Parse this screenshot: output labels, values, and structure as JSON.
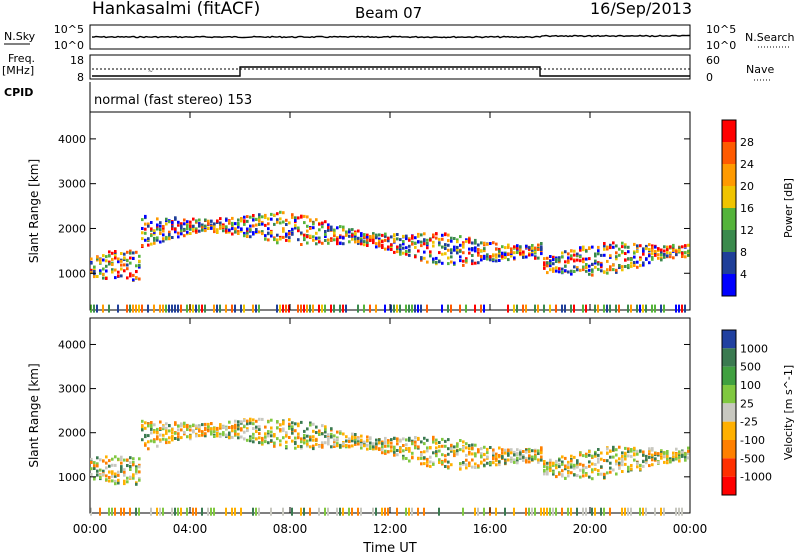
{
  "header": {
    "station": "Hankasalmi (fitACF)",
    "beam": "Beam 07",
    "date": "16/Sep/2013"
  },
  "top_panels": {
    "nsky_label": "N.Sky",
    "nsky_ticks": [
      "10^5",
      "10^0"
    ],
    "nsearch_label": "N.Search",
    "nsearch_ticks": [
      "10^5",
      "10^0"
    ],
    "freq_label_1": "Freq.",
    "freq_label_2": "[MHz]",
    "freq_ticks": [
      "18",
      "8"
    ],
    "nave_label": "Nave",
    "nave_ticks": [
      "60",
      "0"
    ],
    "cpid_label": "CPID",
    "cpid_text": "normal (fast stereo) 153"
  },
  "chart_data": [
    {
      "type": "heatmap",
      "title": "",
      "xlabel": "Time UT",
      "ylabel": "Slant Range [km]",
      "x_ticks": [
        "00:00",
        "04:00",
        "08:00",
        "12:00",
        "16:00",
        "20:00",
        "00:00"
      ],
      "y_ticks": [
        1000,
        2000,
        3000,
        4000
      ],
      "ylim": [
        180,
        4600
      ],
      "colorbar": {
        "label": "Power [dB]",
        "ticks": [
          "28",
          "24",
          "20",
          "16",
          "12",
          "8",
          "4"
        ],
        "colors": [
          "#ff0000",
          "#ff5a00",
          "#ff9a00",
          "#f0c400",
          "#54b33a",
          "#3a8a4c",
          "#1f3f99",
          "#0000ff"
        ]
      }
    },
    {
      "type": "heatmap",
      "title": "",
      "xlabel": "Time UT",
      "ylabel": "Slant Range [km]",
      "x_ticks": [
        "00:00",
        "04:00",
        "08:00",
        "12:00",
        "16:00",
        "20:00",
        "00:00"
      ],
      "y_ticks": [
        1000,
        2000,
        3000,
        4000
      ],
      "ylim": [
        180,
        4600
      ],
      "colorbar": {
        "label": "Velocity [m s^-1]",
        "ticks": [
          "1000",
          "500",
          "100",
          "25",
          "-25",
          "-100",
          "-500",
          "-1000"
        ],
        "colors": [
          "#2040a0",
          "#3a7a50",
          "#40a040",
          "#80c840",
          "#c8c8c0",
          "#ffb000",
          "#ff8000",
          "#ff3000",
          "#ff0000"
        ]
      }
    }
  ],
  "xaxis_title": "Time UT"
}
